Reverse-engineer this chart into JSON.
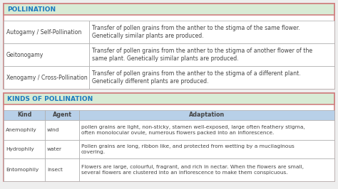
{
  "title1": "POLLINATION",
  "title2": "KINDS OF POLLINATION",
  "table1_rows": [
    [
      "Autogamy / Self-Pollination",
      "Transfer of pollen grains from the anther to the stigma of the same flower.\nGenetically similar plants are produced."
    ],
    [
      "Geitonogamy",
      "Transfer of pollen grains from the anther to the stigma of another flower of the\nsame plant. Genetically similar plants are produced."
    ],
    [
      "Xenogamy / Cross-Pollination",
      "Transfer of pollen grains from the anther to the stigma of a different plant.\nGenetically different plants are produced."
    ]
  ],
  "table2_headers": [
    "Kind",
    "Agent",
    "Adaptation"
  ],
  "table2_rows": [
    [
      "Anemophily",
      "wind",
      "pollen grains are light, non-sticky, stamen well-exposed, large «often feathery» stigma,\noften monolocular ovule, numerous flowers packed into an inflorescence."
    ],
    [
      "Hydrophily",
      "water",
      "Pollen grains are long, ribbon like, and protected from wetting by a mucilaginous\ncovering."
    ],
    [
      "Entomophily",
      "insect",
      "Flowers are large, colourful, fragrant, and rich in nectar. When the flowers are small,\nseveral flowers are clustered into an inflorescence to make them conspicuous."
    ]
  ],
  "table2_rows_plain": [
    [
      "Anemophily",
      "wind",
      "pollen grains are light, non-sticky, stamen well-exposed, large often feathery stigma,\noften monolocular ovule, numerous flowers packed into an inflorescence."
    ],
    [
      "Hydrophily",
      "water",
      "Pollen grains are long, ribbon like, and protected from wetting by a mucilaginous\ncovering."
    ],
    [
      "Entomophily",
      "insect",
      "Flowers are large, colourful, fragrant, and rich in nectar. When the flowers are small,\nseveral flowers are clustered into an inflorescence to make them conspicuous."
    ]
  ],
  "outer_border_color": "#d08080",
  "header_bg_color": "#d8ebd5",
  "header_text_color": "#1a7abf",
  "table_header_bg": "#b8d0e8",
  "text_color": "#444444",
  "border_color": "#aaaaaa",
  "bold_phrase": "often feathery",
  "fig_bg": "#eeeeee",
  "bg_white": "#ffffff"
}
